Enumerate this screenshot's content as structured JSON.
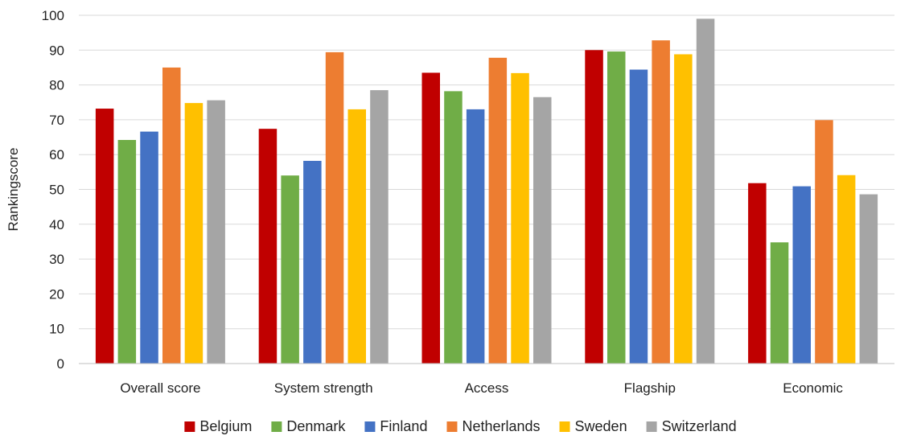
{
  "chart_data": {
    "type": "bar",
    "title": "",
    "xlabel": "",
    "ylabel": "Rankingscore",
    "ylim": [
      0,
      100
    ],
    "yticks": [
      0,
      10,
      20,
      30,
      40,
      50,
      60,
      70,
      80,
      90,
      100
    ],
    "grid": true,
    "legend_position": "bottom",
    "categories": [
      "Overall score",
      "System strength",
      "Access",
      "Flagship",
      "Economic"
    ],
    "series": [
      {
        "name": "Belgium",
        "color": "#c00000",
        "values": [
          73.2,
          67.4,
          83.5,
          90.0,
          51.8
        ]
      },
      {
        "name": "Denmark",
        "color": "#70ad47",
        "values": [
          64.2,
          54.0,
          78.2,
          89.6,
          34.8
        ]
      },
      {
        "name": "Finland",
        "color": "#4472c4",
        "values": [
          66.6,
          58.2,
          73.0,
          84.4,
          50.9
        ]
      },
      {
        "name": "Netherlands",
        "color": "#ed7d31",
        "values": [
          85.0,
          89.4,
          87.8,
          92.8,
          69.9
        ]
      },
      {
        "name": "Sweden",
        "color": "#ffc000",
        "values": [
          74.8,
          73.0,
          83.4,
          88.8,
          54.1
        ]
      },
      {
        "name": "Switzerland",
        "color": "#a5a5a5",
        "values": [
          75.6,
          78.5,
          76.5,
          99.0,
          48.6
        ]
      }
    ]
  }
}
